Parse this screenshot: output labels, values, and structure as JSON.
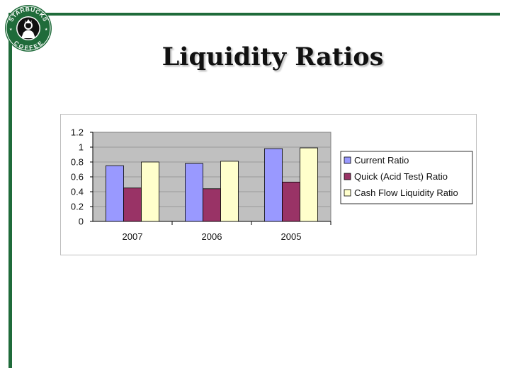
{
  "slide": {
    "title": "Liquidity Ratios",
    "logo": {
      "top_text": "STARBUCKS",
      "bottom_text": "COFFEE",
      "ring_color": "#1f6b3a",
      "icon": "siren-logo-icon"
    }
  },
  "colors": {
    "accent": "#1f6b3a",
    "plot_background": "#c0c0c0"
  },
  "chart_data": {
    "type": "bar",
    "title": "",
    "xlabel": "",
    "ylabel": "",
    "categories": [
      "2007",
      "2006",
      "2005"
    ],
    "series": [
      {
        "name": "Current Ratio",
        "color": "#9999ff",
        "values": [
          0.75,
          0.78,
          0.98
        ]
      },
      {
        "name": "Quick (Acid Test) Ratio",
        "color": "#993366",
        "values": [
          0.45,
          0.44,
          0.53
        ]
      },
      {
        "name": "Cash Flow Liquidity Ratio",
        "color": "#ffffcc",
        "values": [
          0.8,
          0.81,
          0.99
        ]
      }
    ],
    "ylim": [
      0,
      1.2
    ],
    "yticks": [
      "0",
      "0.2",
      "0.4",
      "0.6",
      "0.8",
      "1",
      "1.2"
    ],
    "grid": true,
    "legend": "right"
  }
}
